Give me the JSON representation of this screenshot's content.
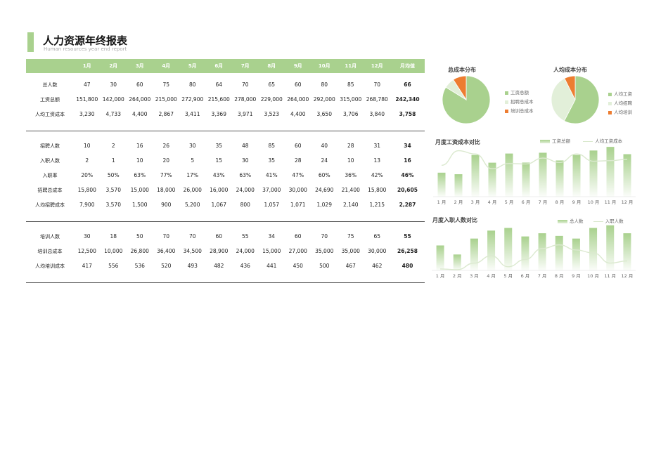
{
  "header": {
    "title": "人力资源年终报表",
    "subtitle": "Human resources year end report"
  },
  "table": {
    "columns": [
      "",
      "1月",
      "2月",
      "3月",
      "4月",
      "5月",
      "6月",
      "7月",
      "8月",
      "9月",
      "10月",
      "11月",
      "12月",
      "月均值"
    ],
    "sections": [
      [
        {
          "label": "总人数",
          "values": [
            "47",
            "30",
            "60",
            "75",
            "80",
            "64",
            "70",
            "65",
            "60",
            "80",
            "85",
            "70"
          ],
          "avg": "66"
        },
        {
          "label": "工资总额",
          "values": [
            "151,800",
            "142,000",
            "264,000",
            "215,000",
            "272,900",
            "215,600",
            "278,000",
            "229,000",
            "264,000",
            "292,000",
            "315,000",
            "268,780"
          ],
          "avg": "242,340"
        },
        {
          "label": "人均工资成本",
          "values": [
            "3,230",
            "4,733",
            "4,400",
            "2,867",
            "3,411",
            "3,369",
            "3,971",
            "3,523",
            "4,400",
            "3,650",
            "3,706",
            "3,840"
          ],
          "avg": "3,758"
        }
      ],
      [
        {
          "label": "招聘人数",
          "values": [
            "10",
            "2",
            "16",
            "26",
            "30",
            "35",
            "48",
            "85",
            "60",
            "40",
            "28",
            "31"
          ],
          "avg": "34"
        },
        {
          "label": "入职人数",
          "values": [
            "2",
            "1",
            "10",
            "20",
            "5",
            "15",
            "30",
            "35",
            "28",
            "24",
            "10",
            "13"
          ],
          "avg": "16"
        },
        {
          "label": "入职率",
          "values": [
            "20%",
            "50%",
            "63%",
            "77%",
            "17%",
            "43%",
            "63%",
            "41%",
            "47%",
            "60%",
            "36%",
            "42%"
          ],
          "avg": "46%"
        },
        {
          "label": "招聘总成本",
          "values": [
            "15,800",
            "3,570",
            "15,000",
            "18,000",
            "26,000",
            "16,000",
            "24,000",
            "37,000",
            "30,000",
            "24,690",
            "21,400",
            "15,800"
          ],
          "avg": "20,605"
        },
        {
          "label": "人均招聘成本",
          "values": [
            "7,900",
            "3,570",
            "1,500",
            "900",
            "5,200",
            "1,067",
            "800",
            "1,057",
            "1,071",
            "1,029",
            "2,140",
            "1,215"
          ],
          "avg": "2,287"
        }
      ],
      [
        {
          "label": "培训人数",
          "values": [
            "30",
            "18",
            "50",
            "70",
            "70",
            "60",
            "55",
            "34",
            "60",
            "70",
            "75",
            "65"
          ],
          "avg": "55"
        },
        {
          "label": "培训总成本",
          "values": [
            "12,500",
            "10,000",
            "26,800",
            "36,400",
            "34,500",
            "28,900",
            "24,000",
            "15,000",
            "27,000",
            "35,000",
            "35,000",
            "30,000"
          ],
          "avg": "26,258"
        },
        {
          "label": "人均培训成本",
          "values": [
            "417",
            "556",
            "536",
            "520",
            "493",
            "482",
            "436",
            "441",
            "450",
            "500",
            "467",
            "462"
          ],
          "avg": "480"
        }
      ]
    ]
  },
  "chart_data": [
    {
      "id": "pie1",
      "type": "pie",
      "title": "总成本分布",
      "labels": [
        "工资总额",
        "招聘总成本",
        "培训总成本"
      ],
      "values": [
        242340,
        20605,
        26258
      ],
      "colors": [
        "#a9d18e",
        "#e2efd9",
        "#ed7d31"
      ]
    },
    {
      "id": "pie2",
      "type": "pie",
      "title": "人均成本分布",
      "labels": [
        "人均工资",
        "人均招聘",
        "人均培训"
      ],
      "values": [
        3758,
        2287,
        480
      ],
      "colors": [
        "#a9d18e",
        "#e2efd9",
        "#ed7d31"
      ]
    },
    {
      "id": "bar1",
      "type": "bar",
      "title": "月度工资成本对比",
      "categories": [
        "1 月",
        "2 月",
        "3 月",
        "4 月",
        "5 月",
        "6 月",
        "7 月",
        "8 月",
        "9 月",
        "10 月",
        "11 月",
        "12 月"
      ],
      "series": [
        {
          "name": "工资总额",
          "kind": "bar",
          "values": [
            151800,
            142000,
            264000,
            215000,
            272900,
            215600,
            278000,
            229000,
            264000,
            292000,
            315000,
            268780
          ]
        },
        {
          "name": "人均工资成本",
          "kind": "line",
          "values": [
            3230,
            4733,
            4400,
            2867,
            3411,
            3369,
            3971,
            3523,
            4400,
            3650,
            3706,
            3840
          ]
        }
      ]
    },
    {
      "id": "bar2",
      "type": "bar",
      "title": "月度入职人数对比",
      "categories": [
        "1 月",
        "2 月",
        "3 月",
        "4 月",
        "5 月",
        "6 月",
        "7 月",
        "8 月",
        "9 月",
        "10 月",
        "11 月",
        "12 月"
      ],
      "series": [
        {
          "name": "总人数",
          "kind": "bar",
          "values": [
            47,
            30,
            60,
            75,
            80,
            64,
            70,
            65,
            60,
            80,
            85,
            70
          ]
        },
        {
          "name": "入职人数",
          "kind": "line",
          "values": [
            2,
            1,
            10,
            20,
            5,
            15,
            30,
            35,
            28,
            24,
            10,
            13
          ]
        }
      ]
    }
  ]
}
